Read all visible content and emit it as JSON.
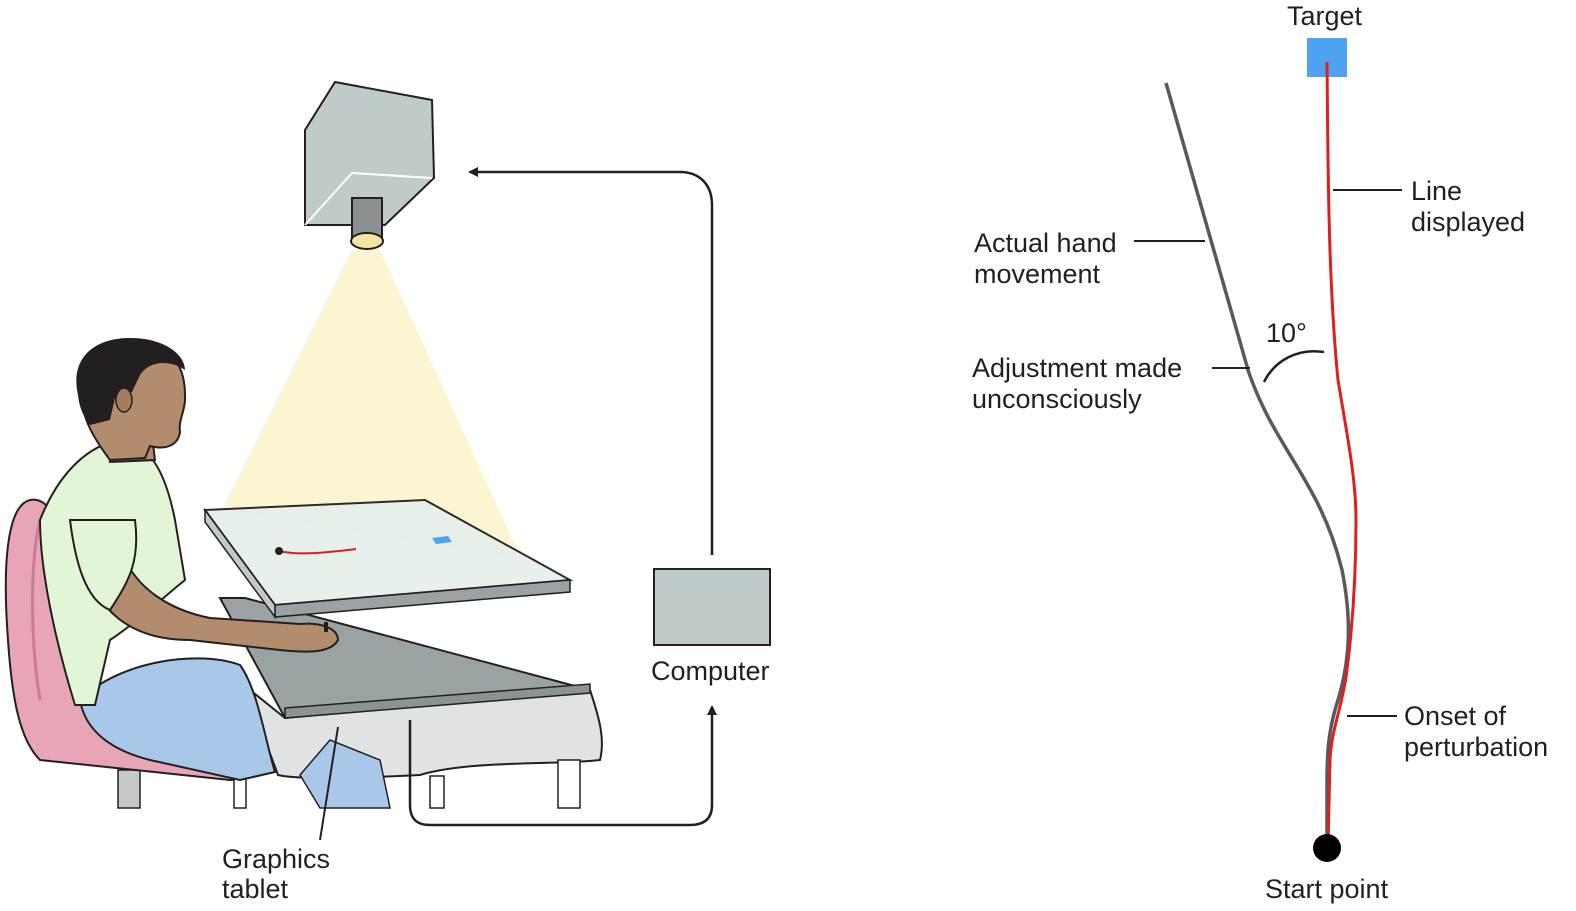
{
  "labels": {
    "computer": "Computer",
    "graphics_tablet": [
      "Graphics",
      "tablet"
    ],
    "target": "Target",
    "line_displayed": [
      "Line",
      "displayed"
    ],
    "actual_hand_movement": [
      "Actual hand",
      "movement"
    ],
    "angle": "10°",
    "adjustment": [
      "Adjustment made",
      "unconsciously"
    ],
    "onset": [
      "Onset of",
      "perturbation"
    ],
    "start_point": "Start point"
  },
  "colors": {
    "displayed_line": "#e01e1e",
    "hand_path": "#58595b",
    "target": "#4da3f0",
    "light_beam": "#fbf5cf",
    "projector": "#bfcbca",
    "computer": "#bfcbca",
    "chair": "#e8a5b6",
    "shirt": "#e2f5d6",
    "trousers": "#a9c8e9",
    "skin": "#b38c6e"
  }
}
